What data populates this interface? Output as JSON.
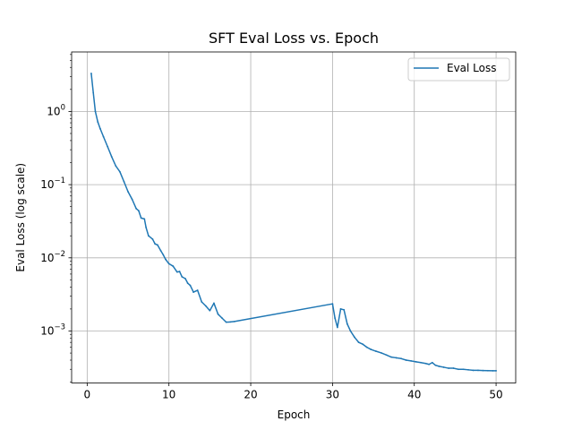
{
  "chart_data": {
    "type": "line",
    "title": "SFT Eval Loss vs. Epoch",
    "xlabel": "Epoch",
    "ylabel": "Eval Loss (log scale)",
    "yscale": "log",
    "xlim": [
      -1.9,
      52.4
    ],
    "ylim": [
      0.000195,
      6.5
    ],
    "xticks": [
      0,
      10,
      20,
      30,
      40,
      50
    ],
    "yticks": [
      0.001,
      0.01,
      0.1,
      1
    ],
    "ytick_labels": [
      {
        "base": "10",
        "exp": "−3"
      },
      {
        "base": "10",
        "exp": "−2"
      },
      {
        "base": "10",
        "exp": "−1"
      },
      {
        "base": "10",
        "exp": "0"
      }
    ],
    "grid": true,
    "legend_position": "top-right",
    "series_color": "#1f77b4",
    "series": [
      {
        "name": "Eval Loss",
        "x": [
          0.5,
          0.75,
          1.0,
          1.3,
          1.6,
          2.0,
          2.5,
          3.0,
          3.5,
          4.0,
          4.5,
          5.0,
          5.5,
          6.0,
          6.3,
          6.6,
          7.0,
          7.2,
          7.5,
          8.0,
          8.3,
          8.6,
          9.0,
          9.3,
          9.6,
          10.0,
          10.5,
          11.0,
          11.3,
          11.6,
          12.0,
          12.3,
          12.6,
          13.0,
          13.5,
          14.0,
          14.5,
          15.0,
          15.5,
          16.0,
          16.5,
          17.0,
          17.5,
          18.0,
          30.0,
          30.3,
          30.6,
          31.0,
          31.4,
          31.8,
          32.2,
          32.7,
          33.2,
          33.7,
          34.2,
          34.7,
          35.3,
          36.0,
          36.6,
          37.2,
          37.8,
          38.4,
          39.0,
          39.6,
          40.2,
          40.8,
          41.4,
          41.8,
          42.2,
          42.6,
          43.0,
          43.6,
          44.2,
          44.8,
          45.4,
          46.0,
          46.6,
          47.2,
          47.8,
          48.4,
          49.0,
          49.6,
          50.0
        ],
        "y": [
          3.3,
          1.8,
          1.0,
          0.72,
          0.58,
          0.45,
          0.33,
          0.24,
          0.18,
          0.15,
          0.11,
          0.08,
          0.063,
          0.047,
          0.044,
          0.035,
          0.034,
          0.026,
          0.02,
          0.018,
          0.0155,
          0.015,
          0.0125,
          0.011,
          0.0095,
          0.0083,
          0.0077,
          0.0064,
          0.0065,
          0.0055,
          0.0052,
          0.0045,
          0.0042,
          0.0034,
          0.0036,
          0.0025,
          0.0022,
          0.0019,
          0.0024,
          0.0017,
          0.0015,
          0.00132,
          0.00133,
          0.00135,
          0.00235,
          0.0015,
          0.00112,
          0.002,
          0.00195,
          0.00125,
          0.001,
          0.00082,
          0.0007,
          0.00066,
          0.0006,
          0.00056,
          0.00053,
          0.0005,
          0.00047,
          0.00044,
          0.00043,
          0.00042,
          0.0004,
          0.00039,
          0.00038,
          0.00037,
          0.00036,
          0.00035,
          0.00037,
          0.00034,
          0.00033,
          0.00032,
          0.00031,
          0.00031,
          0.0003,
          0.0003,
          0.000295,
          0.00029,
          0.00029,
          0.000288,
          0.000287,
          0.000286,
          0.000286
        ]
      }
    ]
  }
}
